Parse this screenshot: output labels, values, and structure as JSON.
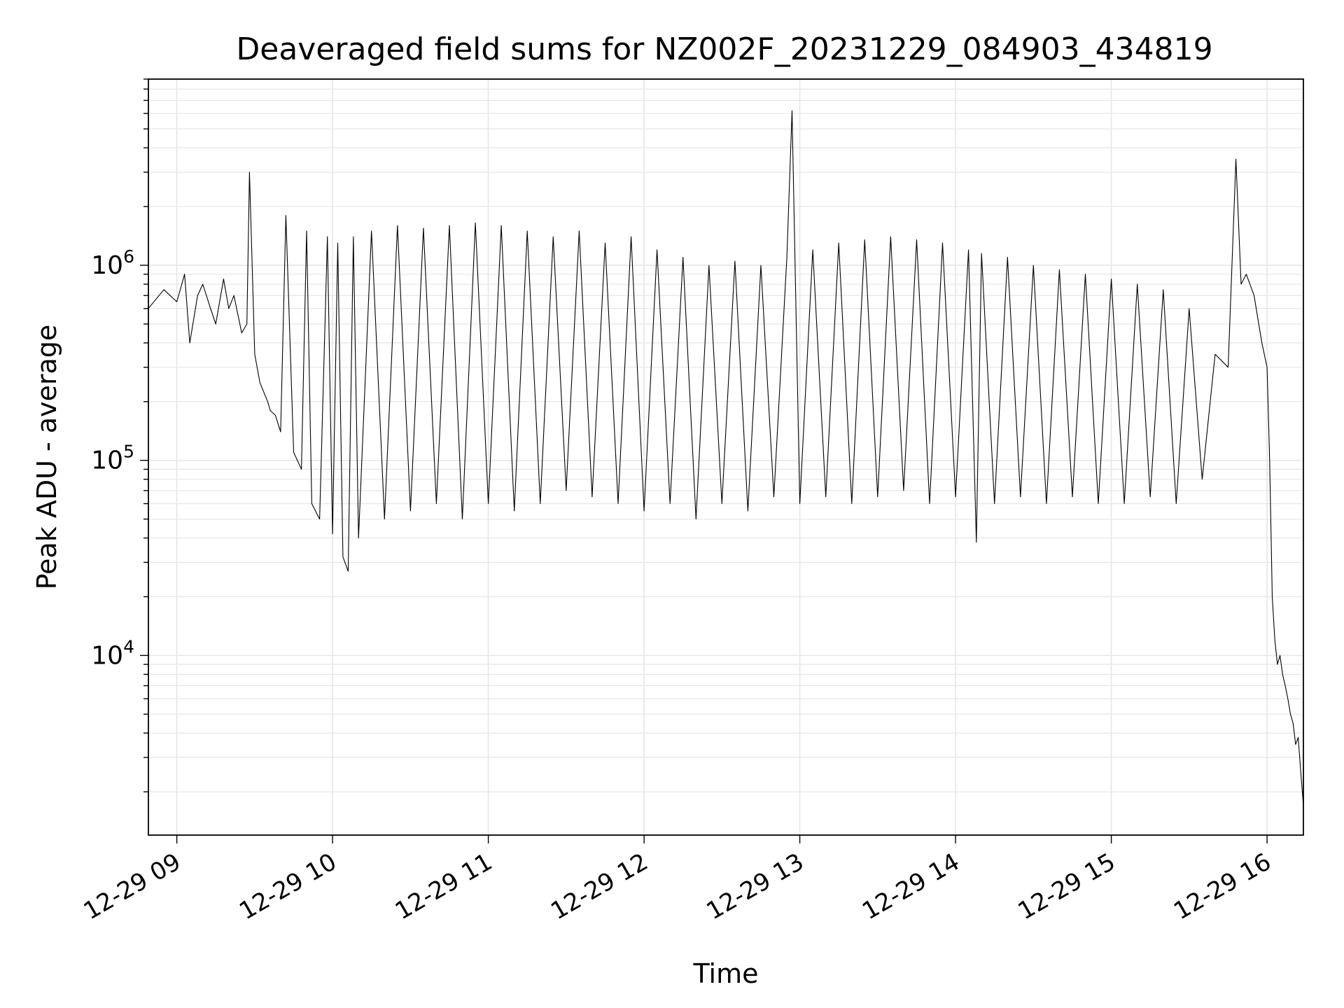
{
  "chart_data": {
    "type": "line",
    "title": "Deaveraged field sums for NZ002F_20231229_084903_434819",
    "xlabel": "Time",
    "ylabel": "Peak ADU - average",
    "yscale": "log",
    "ylim": [
      1200,
      9000000
    ],
    "xlim": [
      "2023-12-29 08:49:03",
      "2023-12-29 16:14:00"
    ],
    "x_ticks": [
      "12-29 09",
      "12-29 10",
      "12-29 11",
      "12-29 12",
      "12-29 13",
      "12-29 14",
      "12-29 15",
      "12-29 16"
    ],
    "y_ticks": [
      {
        "value": 10000,
        "base": "10",
        "exp": "4"
      },
      {
        "value": 100000,
        "base": "10",
        "exp": "5"
      },
      {
        "value": 1000000,
        "base": "10",
        "exp": "6"
      }
    ],
    "grid": true,
    "line_color": "#000000",
    "grid_color": "#e6e6e6",
    "series": [
      {
        "x": [
          "08:49",
          "08:55",
          "09:00",
          "09:03",
          "09:05",
          "09:08",
          "09:10",
          "09:13",
          "09:15",
          "09:18",
          "09:20",
          "09:22",
          "09:25",
          "09:27",
          "09:28",
          "09:30",
          "09:32",
          "09:35",
          "09:36",
          "09:38",
          "09:40",
          "09:42",
          "09:45",
          "09:48",
          "09:50",
          "09:52",
          "09:55",
          "09:58",
          "10:00",
          "10:02",
          "10:04",
          "10:06",
          "10:08",
          "10:10",
          "10:15",
          "10:20",
          "10:25",
          "10:30",
          "10:35",
          "10:40",
          "10:45",
          "10:50",
          "10:55",
          "11:00",
          "11:05",
          "11:10",
          "11:15",
          "11:20",
          "11:25",
          "11:30",
          "11:35",
          "11:40",
          "11:45",
          "11:50",
          "11:55",
          "12:00",
          "12:05",
          "12:10",
          "12:15",
          "12:20",
          "12:25",
          "12:30",
          "12:35",
          "12:40",
          "12:45",
          "12:50",
          "12:55",
          "12:57",
          "13:00",
          "13:05",
          "13:10",
          "13:15",
          "13:20",
          "13:25",
          "13:30",
          "13:35",
          "13:40",
          "13:45",
          "13:50",
          "13:55",
          "14:00",
          "14:05",
          "14:08",
          "14:10",
          "14:15",
          "14:20",
          "14:25",
          "14:30",
          "14:35",
          "14:40",
          "14:45",
          "14:50",
          "14:55",
          "15:00",
          "15:05",
          "15:10",
          "15:15",
          "15:20",
          "15:25",
          "15:30",
          "15:35",
          "15:40",
          "15:45",
          "15:48",
          "15:50",
          "15:52",
          "15:55",
          "15:58",
          "16:00",
          "16:01",
          "16:02",
          "16:03",
          "16:04",
          "16:05",
          "16:06",
          "16:07",
          "16:08",
          "16:09",
          "16:10",
          "16:11",
          "16:12",
          "16:13",
          "16:14"
        ],
        "y": [
          600000,
          750000,
          650000,
          900000,
          400000,
          700000,
          800000,
          600000,
          500000,
          850000,
          600000,
          700000,
          450000,
          500000,
          3000000,
          350000,
          250000,
          200000,
          180000,
          170000,
          140000,
          1800000,
          110000,
          90000,
          1500000,
          60000,
          50000,
          1400000,
          42000,
          1300000,
          32000,
          27000,
          1400000,
          40000,
          1500000,
          50000,
          1600000,
          55000,
          1550000,
          60000,
          1600000,
          50000,
          1650000,
          60000,
          1600000,
          55000,
          1500000,
          60000,
          1400000,
          70000,
          1500000,
          65000,
          1300000,
          60000,
          1400000,
          55000,
          1200000,
          60000,
          1100000,
          50000,
          1000000,
          60000,
          1050000,
          55000,
          1000000,
          65000,
          1100000,
          6200000,
          60000,
          1200000,
          65000,
          1300000,
          60000,
          1350000,
          65000,
          1400000,
          70000,
          1350000,
          60000,
          1300000,
          65000,
          1200000,
          38000,
          1150000,
          60000,
          1100000,
          65000,
          1000000,
          60000,
          950000,
          65000,
          900000,
          60000,
          850000,
          60000,
          800000,
          65000,
          750000,
          60000,
          600000,
          80000,
          350000,
          300000,
          3500000,
          800000,
          900000,
          700000,
          400000,
          300000,
          100000,
          20000,
          12000,
          9000,
          10000,
          8000,
          7000,
          6000,
          5000,
          4500,
          3500,
          3800,
          2500,
          1700
        ]
      }
    ]
  }
}
